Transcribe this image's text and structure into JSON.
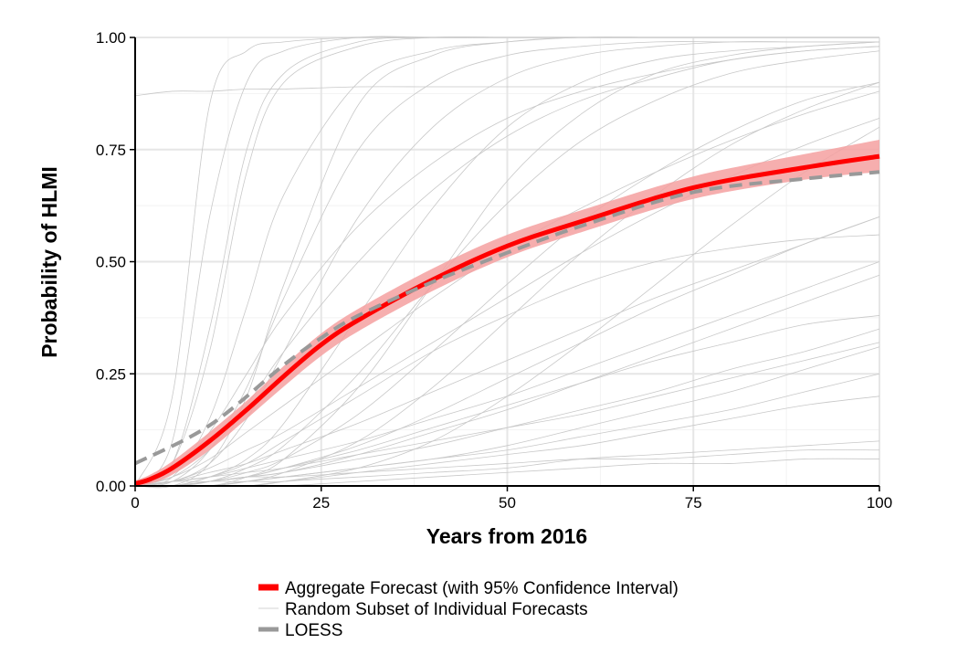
{
  "chart_data": {
    "type": "line",
    "title": "",
    "xlabel": "Years from 2016",
    "ylabel": "Probability of HLMI",
    "xlim": [
      0,
      100
    ],
    "ylim": [
      0,
      1
    ],
    "grid": true,
    "xticks": [
      0,
      25,
      50,
      75,
      100
    ],
    "xtick_labels": [
      "0",
      "25",
      "50",
      "75",
      "100"
    ],
    "yticks": [
      0,
      0.25,
      0.5,
      0.75,
      1
    ],
    "ytick_labels": [
      "0.00",
      "0.25",
      "0.50",
      "0.75",
      "1.00"
    ],
    "legend_position": "bottom",
    "legend": [
      {
        "label": "Aggregate Forecast (with 95% Confidence Interval)",
        "color": "#ff0000",
        "style": "thick"
      },
      {
        "label": "Random Subset of Individual Forecasts",
        "color": "#d3d3d3",
        "style": "thin"
      },
      {
        "label": "LOESS",
        "color": "#999999",
        "style": "dashed"
      }
    ],
    "aggregate": {
      "x": [
        0,
        2,
        5,
        10,
        15,
        20,
        25,
        30,
        40,
        50,
        60,
        75,
        90,
        100
      ],
      "y": [
        0.005,
        0.015,
        0.04,
        0.1,
        0.17,
        0.245,
        0.315,
        0.37,
        0.46,
        0.535,
        0.59,
        0.665,
        0.71,
        0.735
      ],
      "ci_low": [
        0.0,
        0.005,
        0.025,
        0.08,
        0.15,
        0.222,
        0.29,
        0.345,
        0.435,
        0.51,
        0.566,
        0.64,
        0.683,
        0.7
      ],
      "ci_high": [
        0.012,
        0.025,
        0.055,
        0.12,
        0.19,
        0.268,
        0.34,
        0.395,
        0.485,
        0.56,
        0.615,
        0.69,
        0.74,
        0.772
      ],
      "color": "#ff0000",
      "band_color": "#f4a0a0"
    },
    "loess": {
      "x": [
        0,
        10,
        20,
        25,
        30,
        40,
        50,
        60,
        75,
        90,
        100
      ],
      "y": [
        0.05,
        0.135,
        0.27,
        0.33,
        0.38,
        0.455,
        0.52,
        0.58,
        0.655,
        0.685,
        0.7
      ],
      "color": "#999999"
    },
    "individual_x": [
      0,
      5,
      10,
      15,
      20,
      30,
      40,
      50,
      60,
      70,
      80,
      90,
      100
    ],
    "individual": [
      [
        0,
        0.2,
        0.85,
        0.97,
        0.99,
        1,
        1,
        1,
        1,
        1,
        1,
        1,
        1
      ],
      [
        0,
        0.1,
        0.6,
        0.9,
        0.97,
        1,
        1,
        1,
        1,
        1,
        1,
        1,
        1
      ],
      [
        0,
        0.05,
        0.3,
        0.7,
        0.9,
        0.98,
        1,
        1,
        1,
        1,
        1,
        1,
        1
      ],
      [
        0.87,
        0.88,
        0.88,
        0.885,
        0.885,
        0.89,
        0.89,
        0.89,
        0.89,
        0.89,
        0.89,
        0.89,
        0.89
      ],
      [
        0,
        0.02,
        0.15,
        0.4,
        0.65,
        0.9,
        0.97,
        0.99,
        1,
        1,
        1,
        1,
        1
      ],
      [
        0,
        0.01,
        0.08,
        0.22,
        0.42,
        0.75,
        0.9,
        0.96,
        0.98,
        0.99,
        0.99,
        0.99,
        0.99
      ],
      [
        0,
        0.01,
        0.05,
        0.15,
        0.3,
        0.6,
        0.8,
        0.91,
        0.96,
        0.98,
        0.99,
        0.99,
        0.99
      ],
      [
        0,
        0.03,
        0.12,
        0.25,
        0.38,
        0.58,
        0.72,
        0.82,
        0.88,
        0.92,
        0.95,
        0.97,
        0.98
      ],
      [
        0,
        0.0,
        0.02,
        0.06,
        0.14,
        0.38,
        0.62,
        0.8,
        0.9,
        0.95,
        0.97,
        0.98,
        0.99
      ],
      [
        0,
        0.0,
        0.01,
        0.04,
        0.09,
        0.25,
        0.45,
        0.63,
        0.77,
        0.86,
        0.92,
        0.95,
        0.97
      ],
      [
        0,
        0.02,
        0.06,
        0.12,
        0.18,
        0.3,
        0.42,
        0.53,
        0.62,
        0.7,
        0.77,
        0.83,
        0.88
      ],
      [
        0,
        0.0,
        0.01,
        0.03,
        0.06,
        0.16,
        0.3,
        0.45,
        0.59,
        0.7,
        0.79,
        0.86,
        0.9
      ],
      [
        0,
        0.01,
        0.04,
        0.08,
        0.12,
        0.22,
        0.32,
        0.42,
        0.52,
        0.61,
        0.69,
        0.76,
        0.82
      ],
      [
        0,
        0.0,
        0.0,
        0.01,
        0.03,
        0.1,
        0.22,
        0.37,
        0.52,
        0.65,
        0.76,
        0.84,
        0.9
      ],
      [
        0,
        0.01,
        0.03,
        0.05,
        0.08,
        0.14,
        0.21,
        0.28,
        0.35,
        0.42,
        0.48,
        0.54,
        0.6
      ],
      [
        0,
        0.0,
        0.01,
        0.02,
        0.04,
        0.09,
        0.16,
        0.24,
        0.32,
        0.4,
        0.47,
        0.54,
        0.6
      ],
      [
        0,
        0.01,
        0.02,
        0.04,
        0.06,
        0.1,
        0.15,
        0.2,
        0.26,
        0.32,
        0.38,
        0.44,
        0.5
      ],
      [
        0,
        0.0,
        0.01,
        0.02,
        0.03,
        0.07,
        0.12,
        0.17,
        0.23,
        0.29,
        0.35,
        0.41,
        0.47
      ],
      [
        0,
        0.0,
        0.01,
        0.02,
        0.03,
        0.06,
        0.09,
        0.13,
        0.17,
        0.21,
        0.26,
        0.3,
        0.35
      ],
      [
        0,
        0.01,
        0.02,
        0.03,
        0.04,
        0.07,
        0.1,
        0.13,
        0.16,
        0.2,
        0.24,
        0.28,
        0.32
      ],
      [
        0,
        0.0,
        0.0,
        0.01,
        0.02,
        0.04,
        0.06,
        0.09,
        0.13,
        0.17,
        0.21,
        0.26,
        0.31
      ],
      [
        0,
        0.0,
        0.01,
        0.01,
        0.02,
        0.04,
        0.06,
        0.08,
        0.11,
        0.14,
        0.17,
        0.21,
        0.25
      ],
      [
        0,
        0.0,
        0.0,
        0.01,
        0.01,
        0.03,
        0.05,
        0.07,
        0.09,
        0.12,
        0.15,
        0.18,
        0.2
      ],
      [
        0,
        0.0,
        0.0,
        0.0,
        0.01,
        0.02,
        0.03,
        0.04,
        0.06,
        0.07,
        0.08,
        0.09,
        0.1
      ],
      [
        0,
        0.01,
        0.01,
        0.02,
        0.02,
        0.03,
        0.04,
        0.05,
        0.06,
        0.06,
        0.07,
        0.08,
        0.08
      ],
      [
        0,
        0.0,
        0.0,
        0.0,
        0.0,
        0.01,
        0.02,
        0.03,
        0.04,
        0.05,
        0.05,
        0.06,
        0.06
      ],
      [
        0,
        0.05,
        0.35,
        0.75,
        0.92,
        0.99,
        1,
        1,
        1,
        1,
        1,
        1,
        1
      ],
      [
        0,
        0.0,
        0.05,
        0.2,
        0.45,
        0.85,
        0.96,
        0.99,
        1,
        1,
        1,
        1,
        1
      ],
      [
        0,
        0.0,
        0.0,
        0.02,
        0.06,
        0.22,
        0.45,
        0.68,
        0.83,
        0.92,
        0.96,
        0.98,
        0.99
      ],
      [
        0,
        0.0,
        0.02,
        0.05,
        0.1,
        0.2,
        0.3,
        0.38,
        0.45,
        0.5,
        0.53,
        0.55,
        0.56
      ],
      [
        0,
        0.02,
        0.08,
        0.18,
        0.3,
        0.5,
        0.66,
        0.78,
        0.86,
        0.91,
        0.95,
        0.97,
        0.98
      ],
      [
        0,
        0.0,
        0.0,
        0.0,
        0.01,
        0.04,
        0.1,
        0.2,
        0.32,
        0.45,
        0.58,
        0.7,
        0.8
      ],
      [
        0,
        0.0,
        0.01,
        0.02,
        0.04,
        0.08,
        0.13,
        0.18,
        0.23,
        0.28,
        0.32,
        0.36,
        0.38
      ]
    ]
  }
}
